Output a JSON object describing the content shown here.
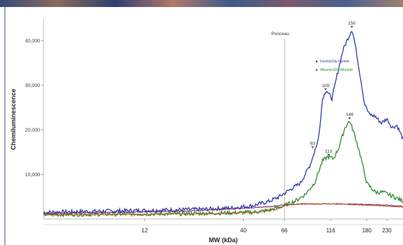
{
  "chart_data": {
    "type": "line",
    "title": "",
    "xlabel": "MW (kDa)",
    "ylabel": "Chemiluminescence",
    "x_scale": "log",
    "xlim": [
      3.5,
      280
    ],
    "ylim": [
      0,
      45000
    ],
    "x_ticks": [
      12,
      40,
      66,
      116,
      180,
      230
    ],
    "x_tick_labels": [
      "12",
      "40",
      "66",
      "116",
      "180",
      "230"
    ],
    "y_ticks": [
      10000,
      20000,
      30000,
      40000
    ],
    "y_tick_labels": [
      "10,000",
      "20,000",
      "30,000",
      "40,000"
    ],
    "grid": false,
    "marker": {
      "label": "Ponceau",
      "x": 66
    },
    "legend": {
      "placement": "top-right",
      "entries": [
        "Ferritin/Gly-Ferritin",
        "Albumin/Gly-Albumin"
      ]
    },
    "series": [
      {
        "name": "Ferritin/Gly-Ferritin",
        "color": "#2f3ba8",
        "points": [
          [
            3.5,
            1500
          ],
          [
            8,
            1800
          ],
          [
            15,
            2000
          ],
          [
            25,
            2200
          ],
          [
            35,
            2500
          ],
          [
            45,
            3000
          ],
          [
            55,
            4000
          ],
          [
            62,
            5000
          ],
          [
            70,
            6500
          ],
          [
            80,
            8000
          ],
          [
            90,
            12000
          ],
          [
            95,
            15000
          ],
          [
            100,
            18000
          ],
          [
            105,
            27000
          ],
          [
            110,
            29000
          ],
          [
            113,
            28000
          ],
          [
            118,
            27000
          ],
          [
            125,
            32000
          ],
          [
            135,
            38000
          ],
          [
            145,
            41000
          ],
          [
            150,
            42500
          ],
          [
            155,
            40000
          ],
          [
            165,
            33000
          ],
          [
            175,
            26000
          ],
          [
            185,
            23500
          ],
          [
            200,
            23000
          ],
          [
            215,
            21500
          ],
          [
            230,
            22500
          ],
          [
            245,
            20500
          ],
          [
            260,
            21000
          ],
          [
            280,
            18000
          ]
        ]
      },
      {
        "name": "Albumin/Gly-Albumin",
        "color": "#2e8b2e",
        "points": [
          [
            3.5,
            1000
          ],
          [
            20,
            1200
          ],
          [
            45,
            1500
          ],
          [
            55,
            2000
          ],
          [
            66,
            3000
          ],
          [
            75,
            4000
          ],
          [
            85,
            5500
          ],
          [
            95,
            8000
          ],
          [
            105,
            13000
          ],
          [
            112,
            14000
          ],
          [
            120,
            13500
          ],
          [
            128,
            16000
          ],
          [
            138,
            20500
          ],
          [
            146,
            22000
          ],
          [
            155,
            19000
          ],
          [
            165,
            15000
          ],
          [
            180,
            8000
          ],
          [
            200,
            6000
          ],
          [
            220,
            6000
          ],
          [
            250,
            5000
          ],
          [
            280,
            4000
          ]
        ]
      },
      {
        "name": "",
        "color": "#7a2a7a",
        "points": [
          [
            3.5,
            1200
          ],
          [
            20,
            1800
          ],
          [
            40,
            2400
          ],
          [
            55,
            2800
          ],
          [
            66,
            3200
          ],
          [
            90,
            3400
          ],
          [
            130,
            3400
          ],
          [
            180,
            3300
          ],
          [
            230,
            3100
          ],
          [
            280,
            2900
          ]
        ]
      },
      {
        "name": "",
        "color": "#c05a20",
        "points": [
          [
            3.5,
            900
          ],
          [
            30,
            1200
          ],
          [
            50,
            1600
          ],
          [
            60,
            2200
          ],
          [
            66,
            3000
          ],
          [
            80,
            3400
          ],
          [
            110,
            3400
          ],
          [
            160,
            3200
          ],
          [
            230,
            2900
          ],
          [
            280,
            2700
          ]
        ]
      }
    ],
    "annotations": [
      {
        "text": "150",
        "x": 150,
        "y": 42500
      },
      {
        "text": "109",
        "x": 109,
        "y": 28500
      },
      {
        "text": "93",
        "x": 93,
        "y": 15500
      },
      {
        "text": "113",
        "x": 113,
        "y": 13800
      },
      {
        "text": "146",
        "x": 146,
        "y": 22000
      }
    ]
  }
}
